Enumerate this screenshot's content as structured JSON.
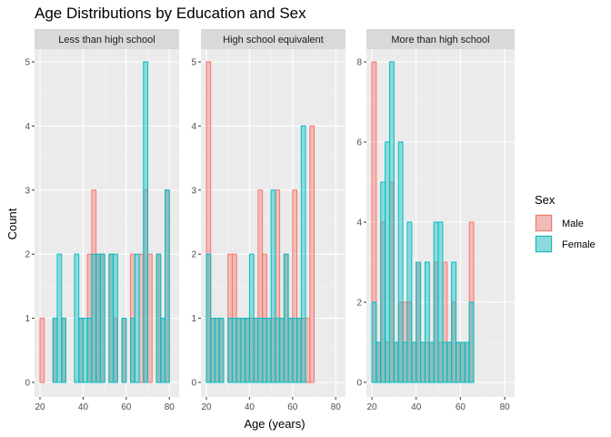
{
  "chart_data": {
    "type": "bar",
    "subtype": "faceted-histogram",
    "title": "Age Distributions by Education and Sex",
    "xlabel": "Age (years)",
    "ylabel": "Count",
    "xlim": [
      20,
      82
    ],
    "x_ticks": [
      20,
      40,
      60,
      80
    ],
    "binwidth": 2,
    "bins": [
      21,
      23,
      25,
      27,
      29,
      31,
      33,
      35,
      37,
      39,
      41,
      43,
      45,
      47,
      49,
      51,
      53,
      55,
      57,
      59,
      61,
      63,
      65,
      67,
      69,
      71,
      73,
      75,
      77,
      79,
      81
    ],
    "grid": true,
    "position": "identity",
    "legend": {
      "title": "Sex",
      "placement": "right",
      "entries": [
        {
          "label": "Male",
          "fill": "#F8766D",
          "stroke": "#F8766D"
        },
        {
          "label": "Female",
          "fill": "#00BFC4",
          "stroke": "#00BFC4"
        }
      ]
    },
    "facets": [
      {
        "label": "Less than high school",
        "ylim": [
          0,
          5
        ],
        "y_ticks": [
          0,
          1,
          2,
          3,
          4,
          5
        ],
        "series": [
          {
            "name": "Male",
            "values": [
              1,
              0,
              0,
              1,
              0,
              1,
              0,
              0,
              0,
              1,
              0,
              2,
              3,
              2,
              2,
              0,
              2,
              1,
              0,
              1,
              0,
              2,
              0,
              2,
              3,
              2,
              0,
              2,
              1,
              3,
              0
            ]
          },
          {
            "name": "Female",
            "values": [
              0,
              0,
              0,
              1,
              2,
              1,
              0,
              0,
              2,
              1,
              1,
              1,
              2,
              2,
              2,
              0,
              2,
              2,
              0,
              1,
              0,
              1,
              2,
              0,
              5,
              0,
              0,
              2,
              1,
              3,
              0
            ]
          }
        ]
      },
      {
        "label": "High school equivalent",
        "ylim": [
          0,
          5
        ],
        "y_ticks": [
          0,
          1,
          2,
          3,
          4,
          5
        ],
        "series": [
          {
            "name": "Male",
            "values": [
              5,
              1,
              1,
              1,
              0,
              2,
              2,
              1,
              1,
              1,
              1,
              1,
              3,
              2,
              1,
              1,
              3,
              1,
              2,
              1,
              3,
              1,
              1,
              1,
              4,
              0,
              0,
              0,
              0,
              0,
              0
            ]
          },
          {
            "name": "Female",
            "values": [
              2,
              1,
              1,
              1,
              0,
              1,
              1,
              1,
              1,
              1,
              2,
              1,
              1,
              1,
              1,
              3,
              1,
              1,
              2,
              1,
              1,
              1,
              4,
              0,
              0,
              0,
              0,
              0,
              0,
              0,
              0
            ]
          }
        ]
      },
      {
        "label": "More than high school",
        "ylim": [
          0,
          8
        ],
        "y_ticks": [
          0,
          2,
          4,
          6,
          8
        ],
        "series": [
          {
            "name": "Male",
            "values": [
              8,
              1,
              4,
              1,
              5,
              1,
              2,
              2,
              2,
              1,
              3,
              1,
              1,
              1,
              3,
              1,
              3,
              1,
              2,
              1,
              1,
              1,
              4,
              0,
              0,
              0,
              0,
              0,
              0,
              0,
              0
            ]
          },
          {
            "name": "Female",
            "values": [
              2,
              1,
              5,
              6,
              8,
              1,
              6,
              1,
              4,
              1,
              3,
              1,
              3,
              1,
              4,
              4,
              1,
              1,
              3,
              1,
              1,
              1,
              2,
              0,
              0,
              0,
              0,
              0,
              0,
              0,
              0
            ]
          }
        ]
      }
    ]
  }
}
